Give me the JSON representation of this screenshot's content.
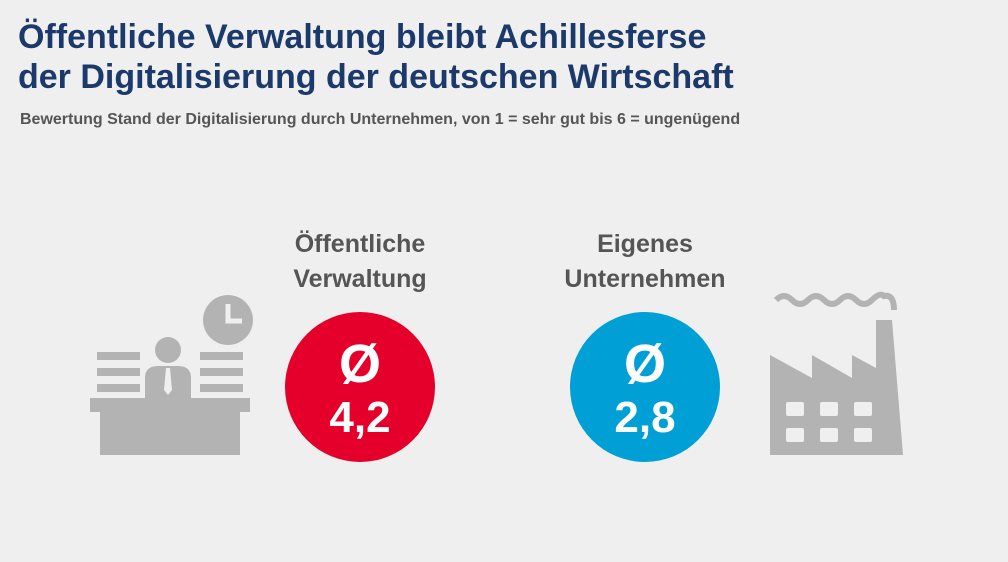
{
  "header": {
    "title": [
      "Öffentliche Verwaltung bleibt Achillesferse",
      "der Digitalisierung der deutschen Wirtschaft"
    ],
    "subtitle": "Bewertung Stand der Digitalisierung durch Unternehmen, von 1 = sehr gut bis 6 = ungenügend"
  },
  "items": [
    {
      "label": [
        "Öffentliche",
        "Verwaltung"
      ],
      "symbol": "Ø",
      "value": "4,2"
    },
    {
      "label": [
        "Eigenes",
        "Unternehmen"
      ],
      "symbol": "Ø",
      "value": "2,8"
    }
  ]
}
